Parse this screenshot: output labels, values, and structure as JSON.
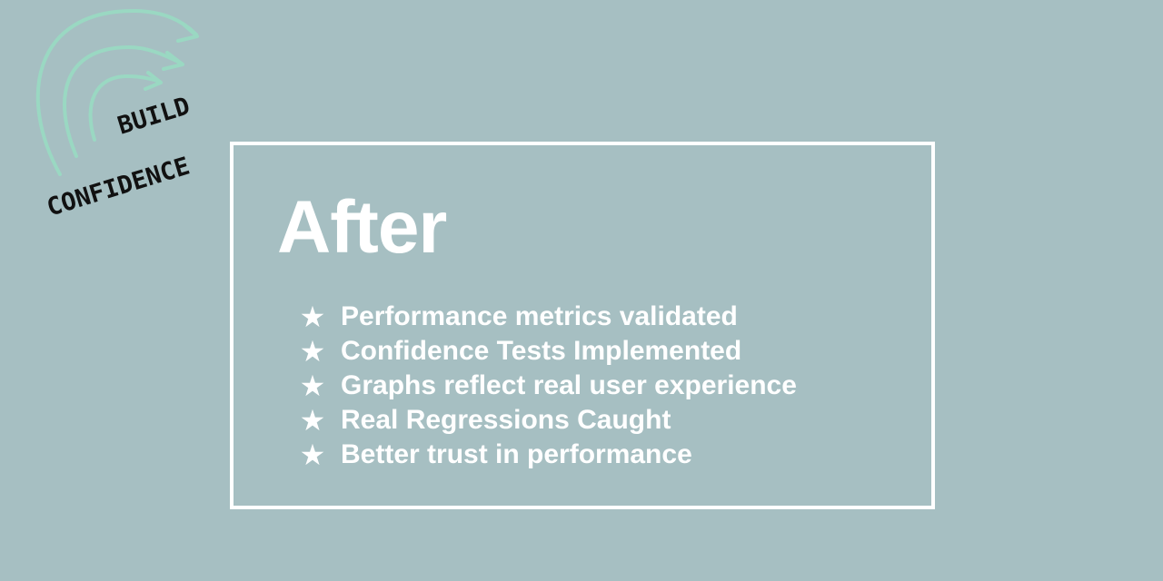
{
  "logo": {
    "line1": "BUILD",
    "line2": "CONFIDENCE",
    "arrow_color": "#9ad8c2",
    "text_color": "#111111"
  },
  "slide": {
    "title": "After",
    "bullet_icon": "star-icon",
    "bullets": [
      "Performance metrics validated",
      "Confidence Tests Implemented",
      "Graphs reflect real user experience",
      "Real Regressions Caught",
      "Better trust in performance"
    ]
  },
  "colors": {
    "background": "#a6bfc2",
    "text": "#ffffff",
    "frame": "#ffffff"
  }
}
